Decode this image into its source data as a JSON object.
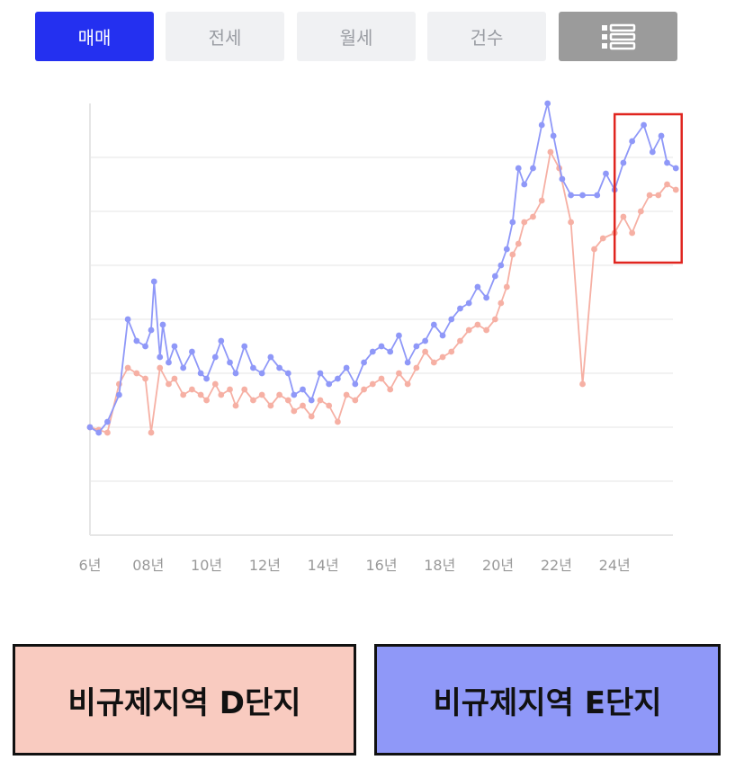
{
  "tabs": [
    {
      "label": "매매",
      "active": true
    },
    {
      "label": "전세",
      "active": false
    },
    {
      "label": "월세",
      "active": false
    },
    {
      "label": "건수",
      "active": false
    }
  ],
  "list_view_icon": "list-view-icon",
  "chart_data": {
    "type": "line",
    "xlabel": "",
    "ylabel": "",
    "x_ticks": [
      "6년",
      "08년",
      "10년",
      "12년",
      "14년",
      "16년",
      "18년",
      "20년",
      "22년",
      "24년"
    ],
    "xlim": [
      2006,
      2026
    ],
    "ylim": [
      0,
      8
    ],
    "grid": true,
    "highlight_box": {
      "x": [
        2024.0,
        2026.3
      ],
      "y": [
        5.05,
        7.8
      ],
      "color": "#e0251f"
    },
    "series": [
      {
        "name": "비규제지역 E단지",
        "color": "#8f98f8",
        "points": [
          [
            2006.0,
            2.0
          ],
          [
            2006.3,
            1.9
          ],
          [
            2006.6,
            2.1
          ],
          [
            2007.0,
            2.6
          ],
          [
            2007.3,
            4.0
          ],
          [
            2007.6,
            3.6
          ],
          [
            2007.9,
            3.5
          ],
          [
            2008.1,
            3.8
          ],
          [
            2008.2,
            4.7
          ],
          [
            2008.4,
            3.3
          ],
          [
            2008.5,
            3.9
          ],
          [
            2008.7,
            3.2
          ],
          [
            2008.9,
            3.5
          ],
          [
            2009.2,
            3.1
          ],
          [
            2009.5,
            3.4
          ],
          [
            2009.8,
            3.0
          ],
          [
            2010.0,
            2.9
          ],
          [
            2010.3,
            3.3
          ],
          [
            2010.5,
            3.6
          ],
          [
            2010.8,
            3.2
          ],
          [
            2011.0,
            3.0
          ],
          [
            2011.3,
            3.5
          ],
          [
            2011.6,
            3.1
          ],
          [
            2011.9,
            3.0
          ],
          [
            2012.2,
            3.3
          ],
          [
            2012.5,
            3.1
          ],
          [
            2012.8,
            3.0
          ],
          [
            2013.0,
            2.6
          ],
          [
            2013.3,
            2.7
          ],
          [
            2013.6,
            2.5
          ],
          [
            2013.9,
            3.0
          ],
          [
            2014.2,
            2.8
          ],
          [
            2014.5,
            2.9
          ],
          [
            2014.8,
            3.1
          ],
          [
            2015.1,
            2.8
          ],
          [
            2015.4,
            3.2
          ],
          [
            2015.7,
            3.4
          ],
          [
            2016.0,
            3.5
          ],
          [
            2016.3,
            3.4
          ],
          [
            2016.6,
            3.7
          ],
          [
            2016.9,
            3.2
          ],
          [
            2017.2,
            3.5
          ],
          [
            2017.5,
            3.6
          ],
          [
            2017.8,
            3.9
          ],
          [
            2018.1,
            3.7
          ],
          [
            2018.4,
            4.0
          ],
          [
            2018.7,
            4.2
          ],
          [
            2019.0,
            4.3
          ],
          [
            2019.3,
            4.6
          ],
          [
            2019.6,
            4.4
          ],
          [
            2019.9,
            4.8
          ],
          [
            2020.1,
            5.0
          ],
          [
            2020.3,
            5.3
          ],
          [
            2020.5,
            5.8
          ],
          [
            2020.7,
            6.8
          ],
          [
            2020.9,
            6.5
          ],
          [
            2021.2,
            6.8
          ],
          [
            2021.5,
            7.6
          ],
          [
            2021.7,
            8.0
          ],
          [
            2021.9,
            7.4
          ],
          [
            2022.2,
            6.6
          ],
          [
            2022.5,
            6.3
          ],
          [
            2022.9,
            6.3
          ],
          [
            2023.4,
            6.3
          ],
          [
            2023.7,
            6.7
          ],
          [
            2024.0,
            6.4
          ],
          [
            2024.3,
            6.9
          ],
          [
            2024.6,
            7.3
          ],
          [
            2025.0,
            7.6
          ],
          [
            2025.3,
            7.1
          ],
          [
            2025.6,
            7.4
          ],
          [
            2025.8,
            6.9
          ],
          [
            2026.1,
            6.8
          ]
        ]
      },
      {
        "name": "비규제지역 D단지",
        "color": "#f6b0a4",
        "points": [
          [
            2006.0,
            2.0
          ],
          [
            2006.3,
            1.95
          ],
          [
            2006.6,
            1.9
          ],
          [
            2007.0,
            2.8
          ],
          [
            2007.3,
            3.1
          ],
          [
            2007.6,
            3.0
          ],
          [
            2007.9,
            2.9
          ],
          [
            2008.1,
            1.9
          ],
          [
            2008.4,
            3.1
          ],
          [
            2008.7,
            2.8
          ],
          [
            2008.9,
            2.9
          ],
          [
            2009.2,
            2.6
          ],
          [
            2009.5,
            2.7
          ],
          [
            2009.8,
            2.6
          ],
          [
            2010.0,
            2.5
          ],
          [
            2010.3,
            2.8
          ],
          [
            2010.5,
            2.6
          ],
          [
            2010.8,
            2.7
          ],
          [
            2011.0,
            2.4
          ],
          [
            2011.3,
            2.7
          ],
          [
            2011.6,
            2.5
          ],
          [
            2011.9,
            2.6
          ],
          [
            2012.2,
            2.4
          ],
          [
            2012.5,
            2.6
          ],
          [
            2012.8,
            2.5
          ],
          [
            2013.0,
            2.3
          ],
          [
            2013.3,
            2.4
          ],
          [
            2013.6,
            2.2
          ],
          [
            2013.9,
            2.5
          ],
          [
            2014.2,
            2.4
          ],
          [
            2014.5,
            2.1
          ],
          [
            2014.8,
            2.6
          ],
          [
            2015.1,
            2.5
          ],
          [
            2015.4,
            2.7
          ],
          [
            2015.7,
            2.8
          ],
          [
            2016.0,
            2.9
          ],
          [
            2016.3,
            2.7
          ],
          [
            2016.6,
            3.0
          ],
          [
            2016.9,
            2.8
          ],
          [
            2017.2,
            3.1
          ],
          [
            2017.5,
            3.4
          ],
          [
            2017.8,
            3.2
          ],
          [
            2018.1,
            3.3
          ],
          [
            2018.4,
            3.4
          ],
          [
            2018.7,
            3.6
          ],
          [
            2019.0,
            3.8
          ],
          [
            2019.3,
            3.9
          ],
          [
            2019.6,
            3.8
          ],
          [
            2019.9,
            4.0
          ],
          [
            2020.1,
            4.3
          ],
          [
            2020.3,
            4.6
          ],
          [
            2020.5,
            5.2
          ],
          [
            2020.7,
            5.4
          ],
          [
            2020.9,
            5.8
          ],
          [
            2021.2,
            5.9
          ],
          [
            2021.5,
            6.2
          ],
          [
            2021.8,
            7.1
          ],
          [
            2022.1,
            6.8
          ],
          [
            2022.5,
            5.8
          ],
          [
            2022.9,
            2.8
          ],
          [
            2023.3,
            5.3
          ],
          [
            2023.6,
            5.5
          ],
          [
            2024.0,
            5.6
          ],
          [
            2024.3,
            5.9
          ],
          [
            2024.6,
            5.6
          ],
          [
            2024.9,
            6.0
          ],
          [
            2025.2,
            6.3
          ],
          [
            2025.5,
            6.3
          ],
          [
            2025.8,
            6.5
          ],
          [
            2026.1,
            6.4
          ]
        ]
      }
    ]
  },
  "legend": {
    "d_label": "비규제지역 D단지",
    "e_label": "비규제지역 E단지"
  }
}
